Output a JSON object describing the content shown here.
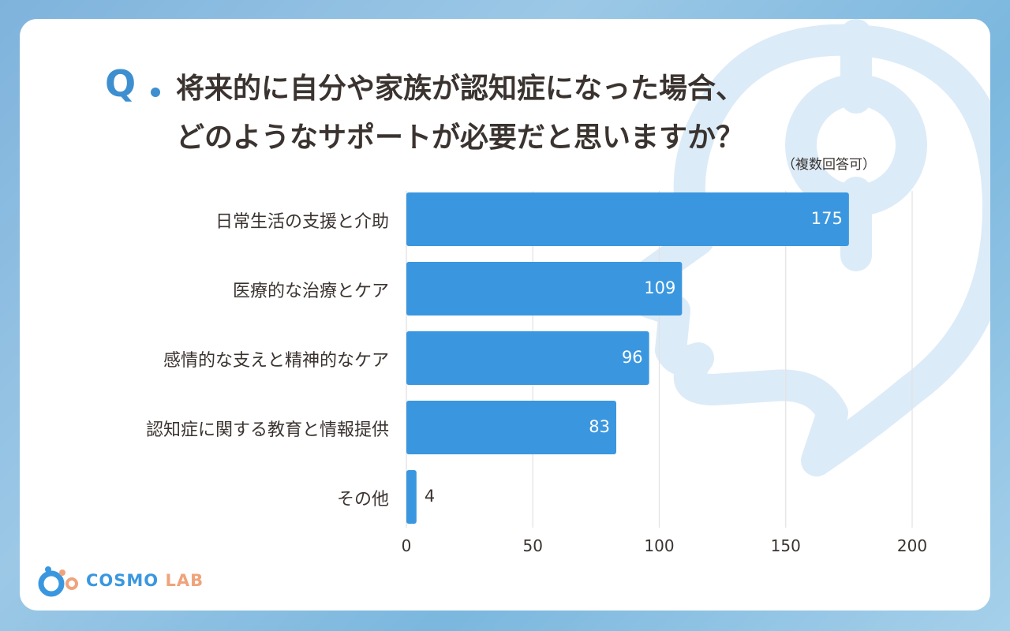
{
  "title": {
    "q_mark": "Q",
    "line1": "将来的に自分や家族が認知症になった場合、",
    "line2": "どのようなサポートが必要だと思いますか？",
    "note": "（複数回答可）"
  },
  "chart_data": {
    "type": "bar",
    "orientation": "horizontal",
    "categories": [
      "日常生活の支援と介助",
      "医療的な治療とケア",
      "感情的な支えと精神的なケア",
      "認知症に関する教育と情報提供",
      "その他"
    ],
    "values": [
      175,
      109,
      96,
      83,
      4
    ],
    "xlim": [
      0,
      200
    ],
    "xticks": [
      "0",
      "50",
      "100",
      "150",
      "200"
    ],
    "grid": "vertical",
    "bar_color": "#3a97df",
    "title": "将来的に自分や家族が認知症になった場合、どのようなサポートが必要だと思いますか？",
    "xlabel": "",
    "ylabel": ""
  },
  "logo": {
    "part1": "COSMO",
    "part2": "LAB",
    "colors": {
      "primary": "#3a97df",
      "accent": "#f0a37a"
    }
  }
}
